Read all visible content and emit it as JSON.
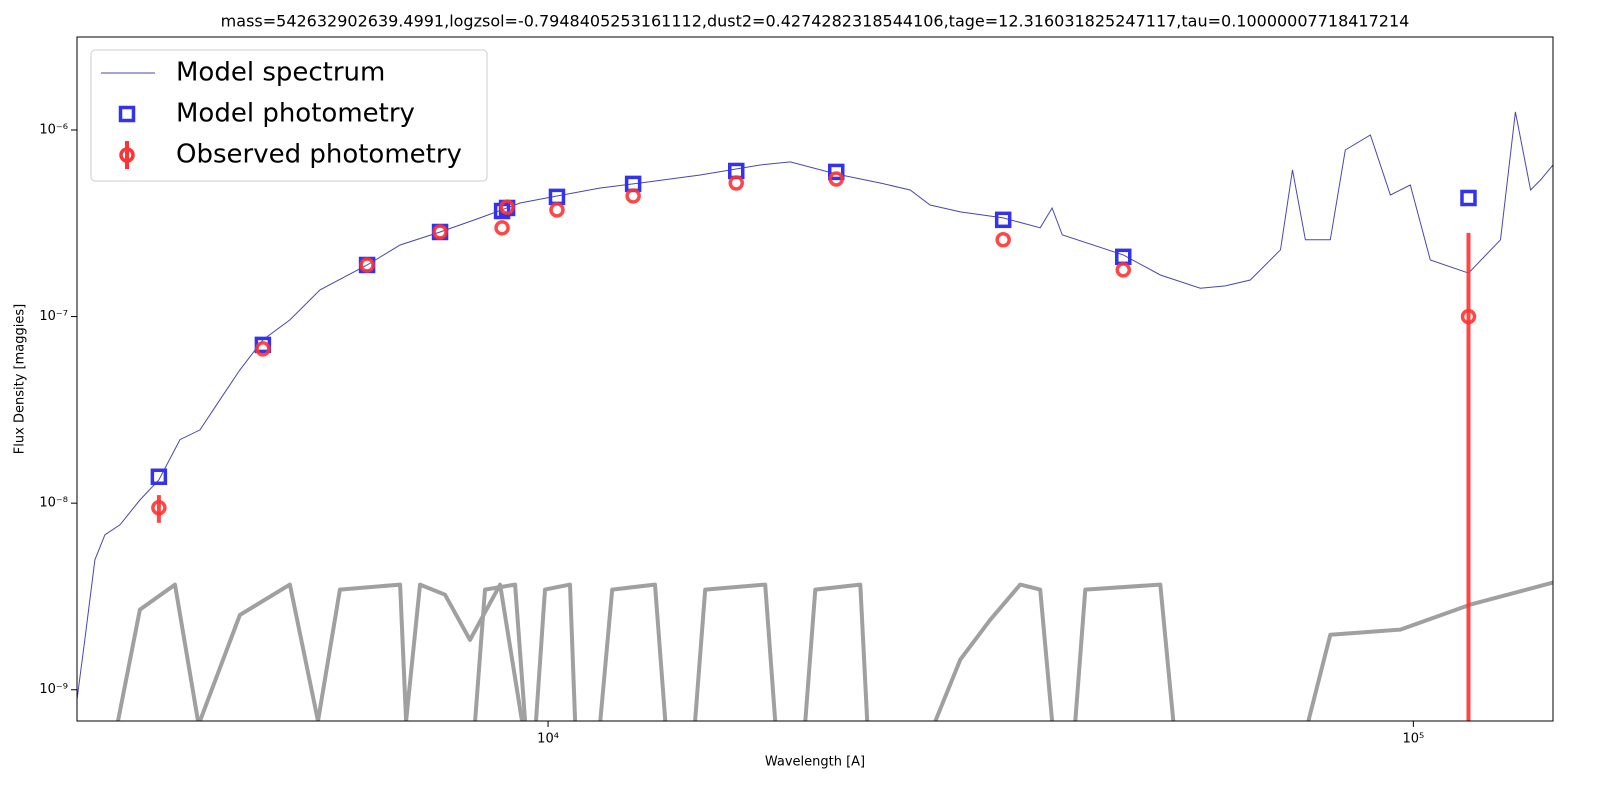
{
  "chart_data": {
    "type": "line",
    "title": "mass=542632902639.4991,logzsol=-0.7948405253161112,dust2=0.4274282318544106,tage=12.316031825247117,tau=0.10000007718417214",
    "x_label": "Wavelength [A]",
    "y_label": "Flux Density [maggies]",
    "x_log": true,
    "y_log": true,
    "xlim": [
      2855,
      145000
    ],
    "ylim": [
      6.8e-10,
      3.15e-06
    ],
    "xticks": [
      {
        "value": 10000,
        "label": "10⁴"
      },
      {
        "value": 100000,
        "label": "10⁵"
      }
    ],
    "yticks": [
      {
        "value": 1e-09,
        "label": "10⁻⁹"
      },
      {
        "value": 1e-08,
        "label": "10⁻⁸"
      },
      {
        "value": 1e-07,
        "label": "10⁻⁷"
      },
      {
        "value": 1e-06,
        "label": "10⁻⁶"
      }
    ],
    "legend": "upper left",
    "series": [
      {
        "name": "Model spectrum",
        "kind": "line",
        "color": "#4848a8",
        "x": [
          2855,
          2915,
          2994,
          3075,
          3201,
          3375,
          3550,
          3755,
          3960,
          4176,
          4404,
          4682,
          5031,
          5450,
          6178,
          6745,
          7502,
          8345,
          9282,
          10240,
          11490,
          12780,
          14990,
          17580,
          19050,
          21530,
          24200,
          26210,
          27640,
          29950,
          33570,
          37050,
          38240,
          39290,
          46210,
          51000,
          56730,
          60620,
          64790,
          70210,
          72490,
          75030,
          80170,
          83440,
          89200,
          94060,
          99200,
          104600,
          115800,
          126100,
          131200,
          136600,
          140300,
          145000
        ],
        "values": [
          8.85e-10,
          1.85e-09,
          4.97e-09,
          6.77e-09,
          7.66e-09,
          1.04e-08,
          1.334e-08,
          2.19e-08,
          2.47e-08,
          3.58e-08,
          5.18e-08,
          7.5e-08,
          9.6e-08,
          1.39e-07,
          1.89e-07,
          2.42e-07,
          2.84e-07,
          3.38e-07,
          4.06e-07,
          4.43e-07,
          4.89e-07,
          5.2e-07,
          5.74e-07,
          6.49e-07,
          6.74e-07,
          5.81e-07,
          5.2e-07,
          4.77e-07,
          3.96e-07,
          3.64e-07,
          3.38e-07,
          2.99e-07,
          3.82e-07,
          2.74e-07,
          2.14e-07,
          1.67e-07,
          1.42e-07,
          1.46e-07,
          1.57e-07,
          2.28e-07,
          6.11e-07,
          2.58e-07,
          2.58e-07,
          7.81e-07,
          9.4e-07,
          4.48e-07,
          5.07e-07,
          2.01e-07,
          1.71e-07,
          2.58e-07,
          1.25e-06,
          4.77e-07,
          5.4e-07,
          6.49e-07
        ]
      },
      {
        "name": "Model photometry",
        "kind": "square",
        "color": "#3333ee",
        "x": [
          3550,
          4682,
          6178,
          7502,
          8848,
          8967,
          10240,
          12540,
          16500,
          21530,
          33570,
          46210,
          115800
        ],
        "values": [
          1.385e-08,
          7.05e-08,
          1.89e-07,
          2.84e-07,
          3.68e-07,
          3.82e-07,
          4.38e-07,
          5.14e-07,
          6.03e-07,
          5.96e-07,
          3.3e-07,
          2.09e-07,
          4.32e-07
        ]
      },
      {
        "name": "Observed photometry",
        "kind": "errorbar",
        "color": "#ff3333",
        "x": [
          3550,
          4682,
          6178,
          7502,
          8848,
          8967,
          10240,
          12540,
          16500,
          21530,
          33570,
          46210,
          115800
        ],
        "values": [
          9.45e-09,
          6.71e-08,
          1.89e-07,
          2.84e-07,
          2.99e-07,
          3.86e-07,
          3.73e-07,
          4.43e-07,
          5.2e-07,
          5.46e-07,
          2.58e-07,
          1.78e-07,
          1e-07
        ],
        "errors": [
          1.6e-09,
          null,
          null,
          null,
          null,
          null,
          null,
          null,
          null,
          null,
          null,
          null,
          1.81e-07
        ]
      }
    ],
    "filters": {
      "color": "#a0a0a0",
      "curves": [
        {
          "x": [
            3184,
            3375,
            3706,
            3939
          ],
          "values": [
            6.8e-10,
            2.69e-09,
            3.66e-09,
            6.8e-10
          ]
        },
        {
          "x": [
            3960,
            4404,
            5031,
            5421
          ],
          "values": [
            6.8e-10,
            2.52e-09,
            3.66e-09,
            6.8e-10
          ]
        },
        {
          "x": [
            5421,
            5747,
            6745,
            6853
          ],
          "values": [
            6.8e-10,
            3.44e-09,
            3.66e-09,
            6.8e-10
          ]
        },
        {
          "x": [
            6853,
            7112,
            7601,
            8125,
            8801,
            9331
          ],
          "values": [
            6.8e-10,
            3.66e-09,
            3.23e-09,
            1.85e-09,
            3.66e-09,
            6.8e-10
          ]
        },
        {
          "x": [
            8235,
            8456,
            9159,
            9406
          ],
          "values": [
            6.8e-10,
            3.44e-09,
            3.66e-09,
            6.8e-10
          ]
        },
        {
          "x": [
            9685,
            9920,
            10600,
            10745
          ],
          "values": [
            6.8e-10,
            3.44e-09,
            3.66e-09,
            6.8e-10
          ]
        },
        {
          "x": [
            11490,
            11860,
            13290,
            13660
          ],
          "values": [
            6.8e-10,
            3.44e-09,
            3.66e-09,
            6.8e-10
          ]
        },
        {
          "x": [
            14790,
            15190,
            17820,
            18300
          ],
          "values": [
            6.8e-10,
            3.44e-09,
            3.66e-09,
            6.8e-10
          ]
        },
        {
          "x": [
            19830,
            20360,
            22950,
            23380
          ],
          "values": [
            6.8e-10,
            3.44e-09,
            3.66e-09,
            6.8e-10
          ]
        },
        {
          "x": [
            28030,
            29950,
            32430,
            35130,
            37050,
            38240
          ],
          "values": [
            6.8e-10,
            1.45e-09,
            2.37e-09,
            3.66e-09,
            3.44e-09,
            6.8e-10
          ]
        },
        {
          "x": [
            40670,
            41770,
            51000,
            52790
          ],
          "values": [
            6.8e-10,
            3.44e-09,
            3.66e-09,
            6.8e-10
          ]
        },
        {
          "x": [
            75620,
            80170,
            96600,
            116400,
            145000
          ],
          "values": [
            6.8e-10,
            1.97e-09,
            2.1e-09,
            2.86e-09,
            3.75e-09
          ]
        }
      ]
    }
  }
}
